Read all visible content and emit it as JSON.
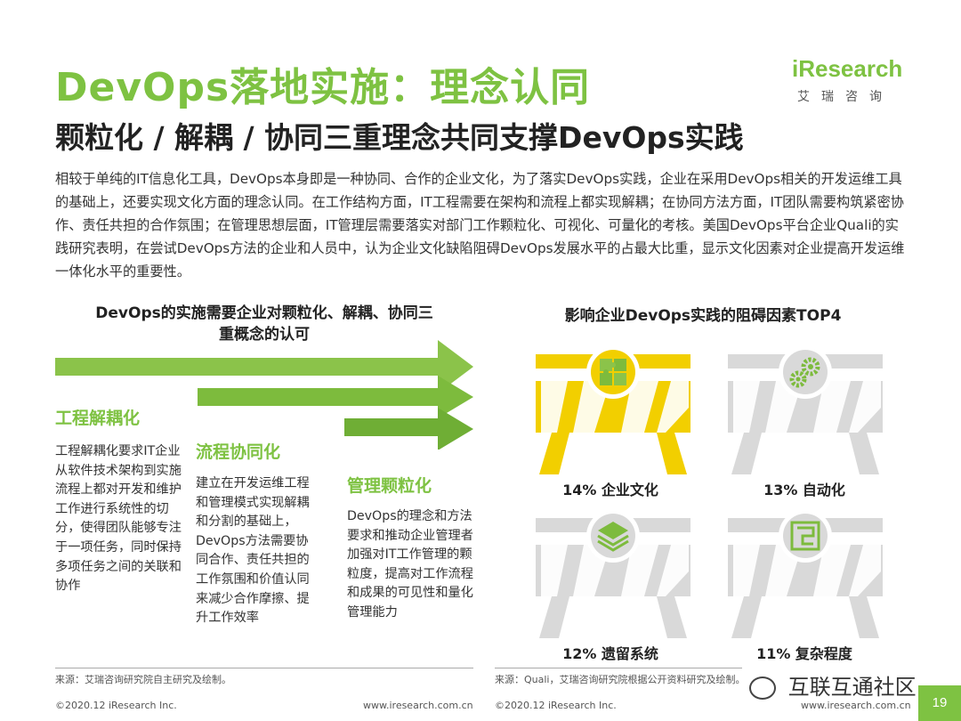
{
  "title": "DevOps落地实施：理念认同",
  "subtitle": "颗粒化 / 解耦 / 协同三重理念共同支撑DevOps实践",
  "logo": {
    "word": "iResearch",
    "cn": "艾瑞咨询"
  },
  "intro": "相较于单纯的IT信息化工具，DevOps本身即是一种协同、合作的企业文化，为了落实DevOps实践，企业在采用DevOps相关的开发运维工具的基础上，还要实现文化方面的理念认同。在工作结构方面，IT工程需要在架构和流程上都实现解耦；在协同方法方面，IT团队需要构筑紧密协作、责任共担的合作氛围；在管理思想层面，IT管理层需要落实对部门工作颗粒化、可视化、可量化的考核。美国DevOps平台企业Quali的实践研究表明，在尝试DevOps方法的企业和人员中，认为企业文化缺陷阻碍DevOps发展水平的占最大比重，显示文化因素对企业提高开发运维一体化水平的重要性。",
  "left": {
    "heading_line1": "DevOps的实施需要企业对颗粒化、解耦、协同三",
    "heading_line2": "重概念的认可",
    "columns": [
      {
        "title": "工程解耦化",
        "text": "工程解耦化要求IT企业从软件技术架构到实施流程上都对开发和维护工作进行系统性的切分，使得团队能够专注于一项任务，同时保持多项任务之间的关联和协作"
      },
      {
        "title": "流程协同化",
        "text": "建立在开发运维工程和管理模式实现解耦和分割的基础上，DevOps方法需要协同合作、责任共担的工作氛围和价值认同来减少合作摩擦、提升工作效率"
      },
      {
        "title": "管理颗粒化",
        "text": "DevOps的理念和方法要求和推动企业管理者加强对IT工作管理的颗粒度，提高对工作流程和成果的可见性和量化管理能力"
      }
    ],
    "source": "来源：艾瑞咨询研究院自主研究及绘制。"
  },
  "right": {
    "heading": "影响企业DevOps实践的阻碍因素TOP4",
    "barriers": [
      {
        "label": "14% 企业文化",
        "icon": "puzzle-icon",
        "highlight": true
      },
      {
        "label": "13% 自动化",
        "icon": "gears-icon",
        "highlight": false
      },
      {
        "label": "12% 遗留系统",
        "icon": "layers-icon",
        "highlight": false
      },
      {
        "label": "11% 复杂程度",
        "icon": "maze-icon",
        "highlight": false
      }
    ],
    "source": "来源：Quali，艾瑞咨询研究院根据公开资料研究及绘制。"
  },
  "footer": {
    "left_copyright": "©2020.12 iResearch Inc.",
    "left_url": "www.iresearch.com.cn",
    "right_copyright": "©2020.12 iResearch Inc.",
    "right_url": "www.iresearch.com.cn",
    "page": "19"
  },
  "watermark": "互联互通社区",
  "colors": {
    "accent": "#7ec242",
    "highlight": "#f2cf00",
    "gray": "#d9d9d9"
  }
}
